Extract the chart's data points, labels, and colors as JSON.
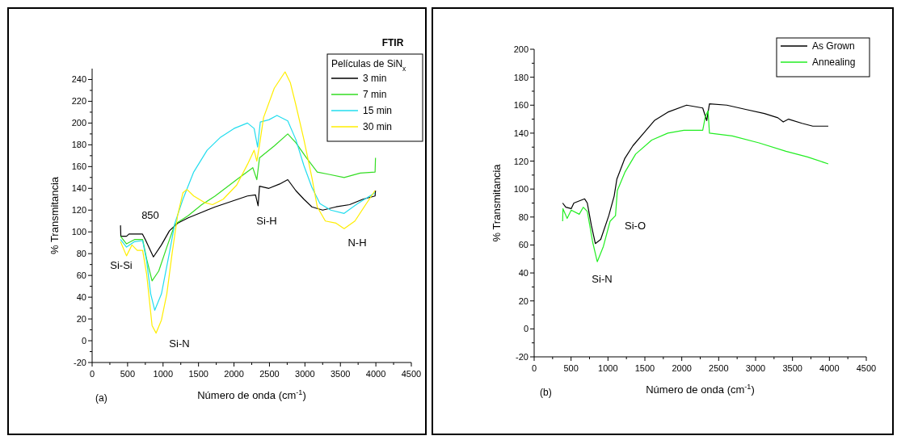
{
  "chart_data": [
    {
      "type": "line",
      "title": "FTIR",
      "legend_title": "Películas de SiN$_{x}$",
      "xlabel": "Número de onda (cm$^{-1}$)",
      "ylabel": "% Transmitancia",
      "xlim": [
        0,
        4500
      ],
      "ylim": [
        -20,
        250
      ],
      "xticks": [
        0,
        500,
        1000,
        1500,
        2000,
        2500,
        3000,
        3500,
        4000,
        4500
      ],
      "yticks": [
        -20,
        0,
        20,
        40,
        60,
        80,
        100,
        120,
        140,
        160,
        180,
        200,
        220,
        240
      ],
      "grid": false,
      "legend": "top right",
      "line_style": "solid",
      "annotations": [
        "(a)",
        "850",
        "Si-Si",
        "Si-N",
        "Si-H",
        "N-H"
      ],
      "series": [
        {
          "name": "3 min",
          "color": "#000000",
          "x": [
            400,
            405,
            485,
            520,
            710,
            750,
            864,
            977,
            1090,
            1205,
            1356,
            1545,
            1735,
            1962,
            2190,
            2303,
            2340,
            2360,
            2492,
            2644,
            2758,
            2871,
            2985,
            3098,
            3250,
            3439,
            3629,
            3818,
            3989,
            3995
          ],
          "values": [
            106,
            96,
            96,
            98,
            98,
            93,
            77,
            88,
            101,
            108,
            113,
            118,
            123,
            128,
            133,
            134,
            124,
            142,
            140,
            144,
            148,
            138,
            130,
            123,
            120,
            123,
            125,
            130,
            133,
            138
          ]
        },
        {
          "name": "7 min",
          "color": "#33dd22",
          "x": [
            400,
            485,
            598,
            712,
            769,
            845,
            939,
            1053,
            1167,
            1356,
            1545,
            1735,
            2038,
            2265,
            2322,
            2360,
            2568,
            2758,
            2871,
            3023,
            3174,
            3326,
            3553,
            3780,
            3989,
            3995
          ],
          "values": [
            96,
            89,
            93,
            93,
            75,
            55,
            64,
            86,
            107,
            115,
            125,
            133,
            148,
            159,
            148,
            168,
            179,
            190,
            182,
            168,
            155,
            153,
            150,
            154,
            155,
            168
          ]
        },
        {
          "name": "15 min",
          "color": "#22ddee",
          "x": [
            400,
            485,
            598,
            712,
            769,
            826,
            883,
            977,
            1090,
            1167,
            1280,
            1432,
            1621,
            1811,
            2000,
            2190,
            2284,
            2333,
            2371,
            2492,
            2606,
            2758,
            2871,
            2985,
            3098,
            3212,
            3364,
            3553,
            3742,
            3989
          ],
          "values": [
            93,
            86,
            91,
            92,
            73,
            43,
            28,
            43,
            81,
            108,
            130,
            155,
            175,
            187,
            195,
            200,
            195,
            178,
            201,
            203,
            207,
            202,
            185,
            161,
            141,
            126,
            120,
            117,
            126,
            136
          ]
        },
        {
          "name": "30 min",
          "color": "#ffee00",
          "x": [
            400,
            485,
            561,
            636,
            712,
            769,
            845,
            902,
            977,
            1053,
            1129,
            1205,
            1280,
            1337,
            1432,
            1583,
            1697,
            1848,
            2038,
            2190,
            2284,
            2322,
            2360,
            2417,
            2568,
            2720,
            2795,
            2871,
            2985,
            3098,
            3174,
            3288,
            3439,
            3553,
            3705,
            3856,
            3989
          ],
          "values": [
            91,
            78,
            88,
            83,
            83,
            61,
            14,
            7,
            19,
            43,
            81,
            115,
            136,
            139,
            133,
            127,
            125,
            130,
            143,
            162,
            175,
            165,
            180,
            205,
            232,
            247,
            237,
            217,
            185,
            150,
            123,
            110,
            108,
            103,
            110,
            125,
            138
          ]
        }
      ]
    },
    {
      "type": "line",
      "xlabel": "Número de onda (cm$^{-1}$)",
      "ylabel": "% Transmitancia",
      "xlim": [
        0,
        4500
      ],
      "ylim": [
        -20,
        200
      ],
      "xticks": [
        0,
        500,
        1000,
        1500,
        2000,
        2500,
        3000,
        3500,
        4000,
        4500
      ],
      "yticks": [
        -20,
        0,
        20,
        40,
        60,
        80,
        100,
        120,
        140,
        160,
        180,
        200
      ],
      "grid": false,
      "legend": "top right",
      "line_style": "solid",
      "annotations": [
        "(b)",
        "Si-O",
        "Si-N"
      ],
      "series": [
        {
          "name": "As Grown",
          "color": "#000000",
          "x": [
            386,
            429,
            502,
            538,
            684,
            720,
            775,
            829,
            902,
            1011,
            1084,
            1120,
            1229,
            1338,
            1484,
            1629,
            1811,
            2065,
            2284,
            2338,
            2375,
            2611,
            2865,
            3120,
            3302,
            3375,
            3447,
            3629,
            3775,
            3985
          ],
          "values": [
            90,
            87,
            86,
            90,
            93,
            90,
            74,
            61,
            64,
            81,
            95,
            107,
            122,
            131,
            140,
            149,
            155,
            160,
            158,
            149,
            161,
            160,
            157,
            154,
            151,
            148,
            150,
            147,
            145,
            145
          ]
        },
        {
          "name": "Annealing",
          "color": "#22ee22",
          "x": [
            386,
            390,
            447,
            502,
            611,
            665,
            720,
            793,
            855,
            938,
            1029,
            1102,
            1127,
            1229,
            1375,
            1593,
            1811,
            2029,
            2284,
            2320,
            2356,
            2375,
            2684,
            3047,
            3411,
            3702,
            3985
          ],
          "values": [
            77,
            86,
            79,
            85,
            82,
            87,
            84,
            62,
            48,
            59,
            77,
            81,
            99,
            112,
            125,
            135,
            140,
            142,
            142,
            152,
            156,
            140,
            138,
            133,
            127,
            123,
            118
          ]
        }
      ]
    }
  ]
}
